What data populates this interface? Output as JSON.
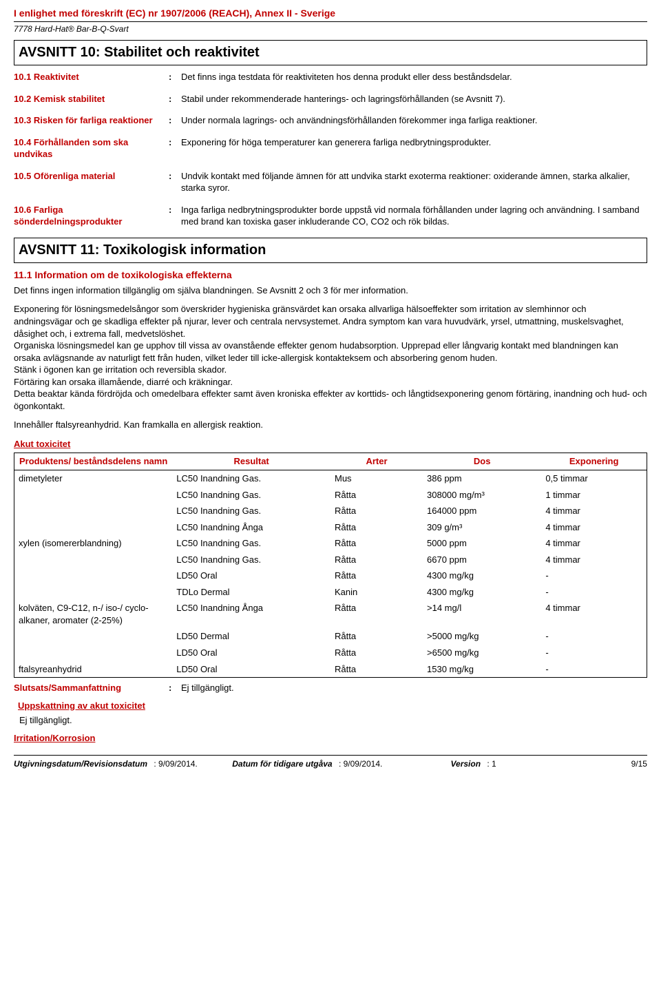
{
  "header": {
    "regulation": "I enlighet med föreskrift (EC) nr 1907/2006 (REACH), Annex II - Sverige",
    "product": "7778 Hard-Hat® Bar-B-Q-Svart"
  },
  "section10": {
    "title": "AVSNITT 10: Stabilitet och reaktivitet",
    "items": [
      {
        "label": "10.1 Reaktivitet",
        "value": "Det finns inga testdata för reaktiviteten hos denna produkt eller dess beståndsdelar."
      },
      {
        "label": "10.2 Kemisk stabilitet",
        "value": "Stabil under rekommenderade hanterings- och lagringsförhållanden (se Avsnitt 7)."
      },
      {
        "label": "10.3 Risken för farliga reaktioner",
        "value": "Under normala lagrings- och användningsförhållanden förekommer inga farliga reaktioner."
      },
      {
        "label": "10.4 Förhållanden som ska undvikas",
        "value": "Exponering för höga temperaturer kan generera farliga nedbrytningsprodukter."
      },
      {
        "label": "10.5 Oförenliga material",
        "value": "Undvik kontakt med följande ämnen för att undvika starkt exoterma reaktioner: oxiderande ämnen, starka alkalier, starka syror."
      },
      {
        "label": "10.6 Farliga sönderdelningsprodukter",
        "value": "Inga farliga nedbrytningsprodukter borde uppstå vid normala förhållanden under lagring och användning. I samband med brand kan toxiska gaser inkluderande CO, CO2 och rök bildas."
      }
    ]
  },
  "section11": {
    "title": "AVSNITT 11: Toxikologisk information",
    "sub1": "11.1 Information om de toxikologiska effekterna",
    "intro": "Det finns ingen information tillgänglig om själva blandningen. Se Avsnitt 2 och 3 för mer information.",
    "para1": "Exponering för lösningsmedelsångor som överskrider hygieniska gränsvärdet kan orsaka allvarliga hälsoeffekter som irritation av slemhinnor och andningsvägar och ge skadliga effekter på njurar, lever och centrala nervsystemet. Andra symptom kan vara huvudvärk, yrsel, utmattning, muskelsvaghet, dåsighet och, i extrema fall, medvetslöshet.",
    "para2": "Organiska lösningsmedel kan ge upphov till vissa av ovanstående effekter genom hudabsorption. Upprepad eller långvarig kontakt med blandningen kan orsaka avlägsnande av naturligt fett från huden, vilket leder till icke-allergisk kontakteksem och absorbering genom huden.",
    "para3": "Stänk i ögonen kan ge irritation och reversibla skador.",
    "para4": "Förtäring kan orsaka illamående, diarré och kräkningar.",
    "para5": "Detta beaktar kända fördröjda och omedelbara effekter samt även kroniska effekter av korttids- och långtidsexponering genom förtäring, inandning och hud- och ögonkontakt.",
    "allergen": "Innehåller ftalsyreanhydrid. Kan framkalla en allergisk reaktion.",
    "acute_heading": "Akut toxicitet",
    "table": {
      "headers": [
        "Produktens/ beståndsdelens namn",
        "Resultat",
        "Arter",
        "Dos",
        "Exponering"
      ],
      "rows": [
        [
          "dimetyleter",
          "LC50 Inandning Gas.",
          "Mus",
          "386 ppm",
          "0,5 timmar"
        ],
        [
          "",
          "LC50 Inandning Gas.",
          "Råtta",
          "308000 mg/m³",
          "1 timmar"
        ],
        [
          "",
          "LC50 Inandning Gas.",
          "Råtta",
          "164000 ppm",
          "4 timmar"
        ],
        [
          "",
          "LC50 Inandning Ånga",
          "Råtta",
          "309 g/m³",
          "4 timmar"
        ],
        [
          "xylen (isomererblandning)",
          "LC50 Inandning Gas.",
          "Råtta",
          "5000 ppm",
          "4 timmar"
        ],
        [
          "",
          "LC50 Inandning Gas.",
          "Råtta",
          "6670 ppm",
          "4 timmar"
        ],
        [
          "",
          "LD50 Oral",
          "Råtta",
          "4300 mg/kg",
          "-"
        ],
        [
          "",
          "TDLo Dermal",
          "Kanin",
          "4300 mg/kg",
          "-"
        ],
        [
          "kolväten, C9-C12,  n-/ iso-/ cyclo-alkaner, aromater (2-25%)",
          "LC50 Inandning Ånga",
          "Råtta",
          ">14 mg/l",
          "4 timmar"
        ],
        [
          "",
          "LD50 Dermal",
          "Råtta",
          ">5000 mg/kg",
          "-"
        ],
        [
          "",
          "LD50 Oral",
          "Råtta",
          ">6500 mg/kg",
          "-"
        ],
        [
          "ftalsyreanhydrid",
          "LD50 Oral",
          "Råtta",
          "1530 mg/kg",
          "-"
        ]
      ]
    },
    "conclusion_label": "Slutsats/Sammanfattning",
    "conclusion_value": "Ej tillgängligt.",
    "estimate_heading": "Uppskattning av akut toxicitet",
    "estimate_value": "Ej tillgängligt.",
    "irritation_heading": "Irritation/Korrosion"
  },
  "footer": {
    "issue_label": "Utgivningsdatum/Revisionsdatum",
    "issue_value": ": 9/09/2014.",
    "prev_label": "Datum för tidigare utgåva",
    "prev_value": ": 9/09/2014.",
    "version_label": "Version",
    "version_value": ": 1",
    "page": "9/15"
  }
}
